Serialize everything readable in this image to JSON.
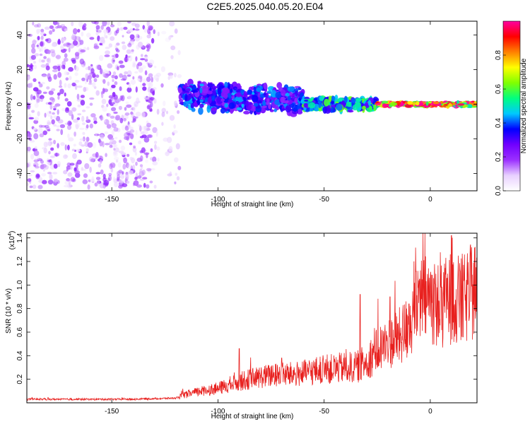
{
  "figure": {
    "title": "C2E5.2025.040.05.20.E04"
  },
  "chart_data": [
    {
      "type": "heatmap",
      "xlabel": "Height of straight line (km)",
      "ylabel": "Frequency (Hz)",
      "xlim": [
        -190,
        22
      ],
      "ylim": [
        -50,
        48
      ],
      "xticks": [
        -150,
        -100,
        -50,
        0
      ],
      "yticks": [
        -40,
        -20,
        0,
        20,
        40
      ],
      "colorbar": {
        "label": "Normalized spectral amplitude",
        "range": [
          0.0,
          1.0
        ],
        "ticks": [
          0.0,
          0.2,
          0.4,
          0.6,
          0.8
        ],
        "tick_labels": [
          "0.0",
          "0.2",
          "0.4",
          "0.6",
          "0.8"
        ],
        "colormap": [
          "#ffffff",
          "#e8d0ff",
          "#9b30ff",
          "#7000ff",
          "#0000ff",
          "#00c8ff",
          "#00ff80",
          "#80ff00",
          "#ffff00",
          "#ff8000",
          "#ff0000",
          "#ff00a0"
        ]
      },
      "regions": [
        {
          "x": [
            -190,
            -130
          ],
          "freq_spread_hz": 48,
          "amplitude": 0.15,
          "note_value": "noise"
        },
        {
          "x": [
            -130,
            -118
          ],
          "freq_spread_hz": 48,
          "amplitude": 0.08
        },
        {
          "x": [
            -118,
            -60
          ],
          "freq_center_hz": 5,
          "freq_spread_hz": 9,
          "amplitude": 0.35
        },
        {
          "x": [
            -60,
            -25
          ],
          "freq_center_hz": 0,
          "freq_spread_hz": 4,
          "amplitude": 0.5
        },
        {
          "x": [
            -25,
            22
          ],
          "freq_center_hz": 0,
          "freq_spread_hz": 1.5,
          "amplitude": 0.9
        }
      ],
      "grid": false,
      "legend": "none"
    },
    {
      "type": "line",
      "xlabel": "Height of straight line (km)",
      "ylabel": "SNR (10 * v/v)",
      "y_multiplier": "(x10^4)",
      "xlim": [
        -190,
        22
      ],
      "ylim": [
        0,
        14400
      ],
      "xticks": [
        -150,
        -100,
        -50,
        0
      ],
      "yticks": [
        2000,
        4000,
        6000,
        8000,
        10000,
        12000,
        14000
      ],
      "ytick_labels": [
        "0.2",
        "0.4",
        "0.6",
        "0.8",
        "1.0",
        "1.2",
        "1.4"
      ],
      "series": [
        {
          "color": "#e8201e",
          "x": [
            -190,
            -180,
            -170,
            -160,
            -150,
            -140,
            -130,
            -120,
            -115,
            -110,
            -105,
            -100,
            -95,
            -90,
            -85,
            -80,
            -75,
            -70,
            -65,
            -60,
            -55,
            -50,
            -45,
            -40,
            -35,
            -30,
            -25,
            -20,
            -15,
            -10,
            -5,
            0,
            5,
            10,
            15,
            20,
            22
          ],
          "values": [
            300,
            300,
            300,
            300,
            300,
            300,
            350,
            400,
            700,
            900,
            1100,
            1200,
            1500,
            1800,
            2000,
            2200,
            2300,
            2400,
            2400,
            2500,
            2700,
            2800,
            2900,
            3000,
            3000,
            3500,
            4500,
            5000,
            5500,
            6500,
            8500,
            9000,
            8000,
            9000,
            8500,
            9500,
            10000
          ],
          "peaks": [
            {
              "x": -90,
              "y": 4600
            },
            {
              "x": -70,
              "y": 3800
            },
            {
              "x": -33,
              "y": 9200
            },
            {
              "x": -19,
              "y": 9000
            },
            {
              "x": -10,
              "y": 8400
            },
            {
              "x": -5,
              "y": 10500
            },
            {
              "x": 10,
              "y": 14200
            },
            {
              "x": 22,
              "y": 12300
            }
          ]
        }
      ],
      "grid": false,
      "legend": "none"
    }
  ]
}
